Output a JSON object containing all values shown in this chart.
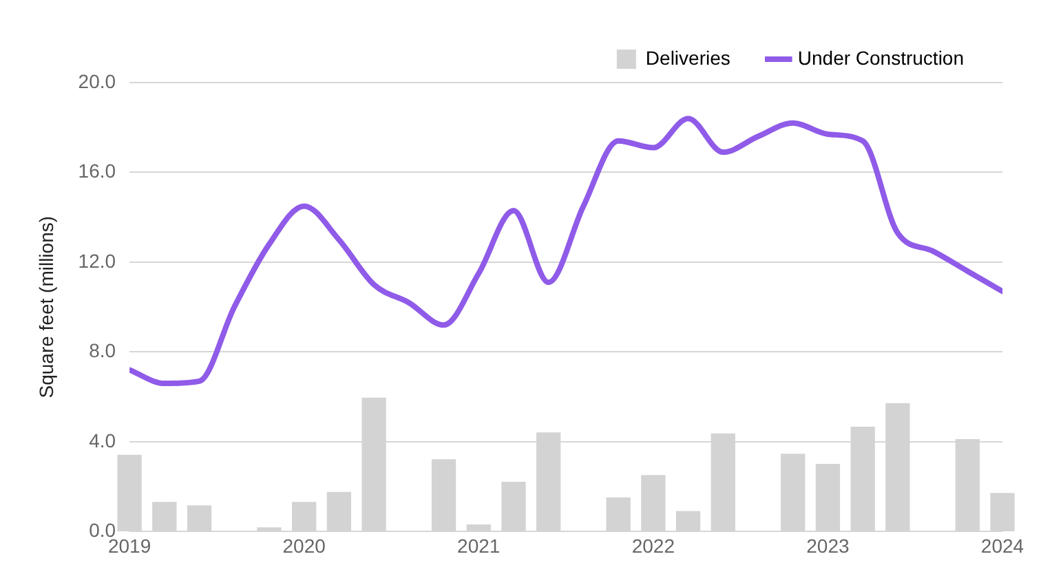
{
  "chart_data": {
    "type": "bar",
    "ylabel": "Square feet (millions)",
    "x": [
      2019,
      2019.2,
      2019.4,
      2019.6,
      2019.8,
      2020,
      2020.2,
      2020.4,
      2020.6,
      2020.8,
      2021,
      2021.2,
      2021.4,
      2021.6,
      2021.8,
      2022,
      2022.2,
      2022.4,
      2022.6,
      2022.8,
      2023,
      2023.2,
      2023.4,
      2023.6,
      2023.8,
      2024
    ],
    "series": [
      {
        "name": "Deliveries",
        "color": "#d3d3d3",
        "values": [
          3.4,
          1.3,
          1.15,
          null,
          0.17,
          1.3,
          1.75,
          5.95,
          null,
          3.2,
          0.3,
          2.2,
          4.4,
          null,
          1.5,
          2.5,
          0.9,
          4.35,
          null,
          3.45,
          3.0,
          4.65,
          5.7,
          null,
          4.1,
          1.7
        ]
      },
      {
        "name": "Under Construction",
        "type": "line",
        "color": "#8f5be8",
        "values": [
          7.2,
          6.6,
          6.7,
          10.0,
          12.8,
          14.5,
          13.0,
          11.0,
          10.2,
          9.2,
          11.5,
          14.3,
          11.1,
          14.5,
          17.4,
          17.1,
          18.4,
          16.9,
          17.6,
          18.2,
          17.7,
          17.4,
          13.3,
          12.5,
          11.6,
          10.7
        ]
      }
    ],
    "xlim": [
      2019,
      2024
    ],
    "xticks": [
      2019,
      2020,
      2021,
      2022,
      2023,
      2024
    ],
    "ylim": [
      0,
      20
    ],
    "yticks": [
      {
        "value": 0,
        "label": "0.0"
      },
      {
        "value": 4,
        "label": "4.0"
      },
      {
        "value": 8,
        "label": "8.0"
      },
      {
        "value": 12,
        "label": "12.0"
      },
      {
        "value": 16,
        "label": "16.0"
      },
      {
        "value": 20,
        "label": "20.0"
      }
    ],
    "grid": "y",
    "legend": "top right"
  }
}
